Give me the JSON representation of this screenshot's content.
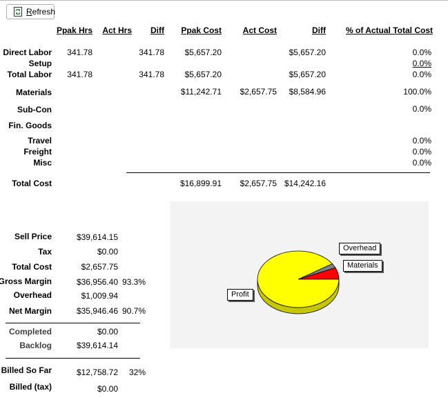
{
  "toolbar": {
    "refresh_label": "Refresh",
    "refresh_icon": "refresh-icon"
  },
  "table": {
    "headers": {
      "ppak_hrs": "Ppak Hrs",
      "act_hrs": "Act Hrs",
      "diff_hrs": "Diff",
      "ppak_cost": "Ppak Cost",
      "act_cost": "Act Cost",
      "diff_cost": "Diff",
      "pct_total": "% of Actual Total Cost"
    },
    "rows": {
      "direct_labor": {
        "label": "Direct Labor",
        "ppak_hrs": "341.78",
        "act_hrs": "",
        "diff_hrs": "341.78",
        "ppak_cost": "$5,657.20",
        "act_cost": "",
        "diff_cost": "$5,657.20",
        "pct": "0.0%"
      },
      "setup": {
        "label": "Setup",
        "pct": "0.0%"
      },
      "total_labor": {
        "label": "Total Labor",
        "ppak_hrs": "341.78",
        "act_hrs": "",
        "diff_hrs": "341.78",
        "ppak_cost": "$5,657.20",
        "act_cost": "",
        "diff_cost": "$5,657.20",
        "pct": "0.0%"
      },
      "materials": {
        "label": "Materials",
        "ppak_cost": "$11,242.71",
        "act_cost": "$2,657.75",
        "diff_cost": "$8,584.96",
        "pct": "100.0%"
      },
      "sub_con": {
        "label": "Sub-Con",
        "pct": "0.0%"
      },
      "fin_goods": {
        "label": "Fin. Goods",
        "pct": ""
      },
      "travel": {
        "label": "Travel",
        "pct": "0.0%"
      },
      "freight": {
        "label": "Freight",
        "pct": "0.0%"
      },
      "misc": {
        "label": "Misc",
        "pct": "0.0%"
      },
      "total_cost": {
        "label": "Total Cost",
        "ppak_cost": "$16,899.91",
        "act_cost": "$2,657.75",
        "diff_cost": "$14,242.16"
      }
    }
  },
  "summary": {
    "sell_price": {
      "label": "Sell Price",
      "value": "$39,614.15"
    },
    "tax": {
      "label": "Tax",
      "value": "$0.00"
    },
    "total_cost": {
      "label": "Total Cost",
      "value": "$2,657.75"
    },
    "gross_margin": {
      "label": "Gross Margin",
      "value": "$36,956.40",
      "pct": "93.3%"
    },
    "overhead": {
      "label": "Overhead",
      "value": "$1,009.94"
    },
    "net_margin": {
      "label": "Net Margin",
      "value": "$35,946.46",
      "pct": "90.7%"
    },
    "completed": {
      "label": "Completed",
      "value": "$0.00"
    },
    "backlog": {
      "label": "Backlog",
      "value": "$39,614.14"
    },
    "billed_so_far": {
      "label": "Billed So Far",
      "value": "$12,758.72",
      "pct": "32%"
    },
    "billed_tax": {
      "label": "Billed (tax)",
      "value": "$0.00"
    }
  },
  "chart_data": {
    "type": "pie",
    "categories": [
      "Profit",
      "Materials",
      "Overhead"
    ],
    "values": [
      35946.46,
      2657.75,
      1009.94
    ],
    "colors": [
      "#ffff00",
      "#ff0000",
      "#808080"
    ],
    "style": "3d",
    "legend": "callouts"
  }
}
